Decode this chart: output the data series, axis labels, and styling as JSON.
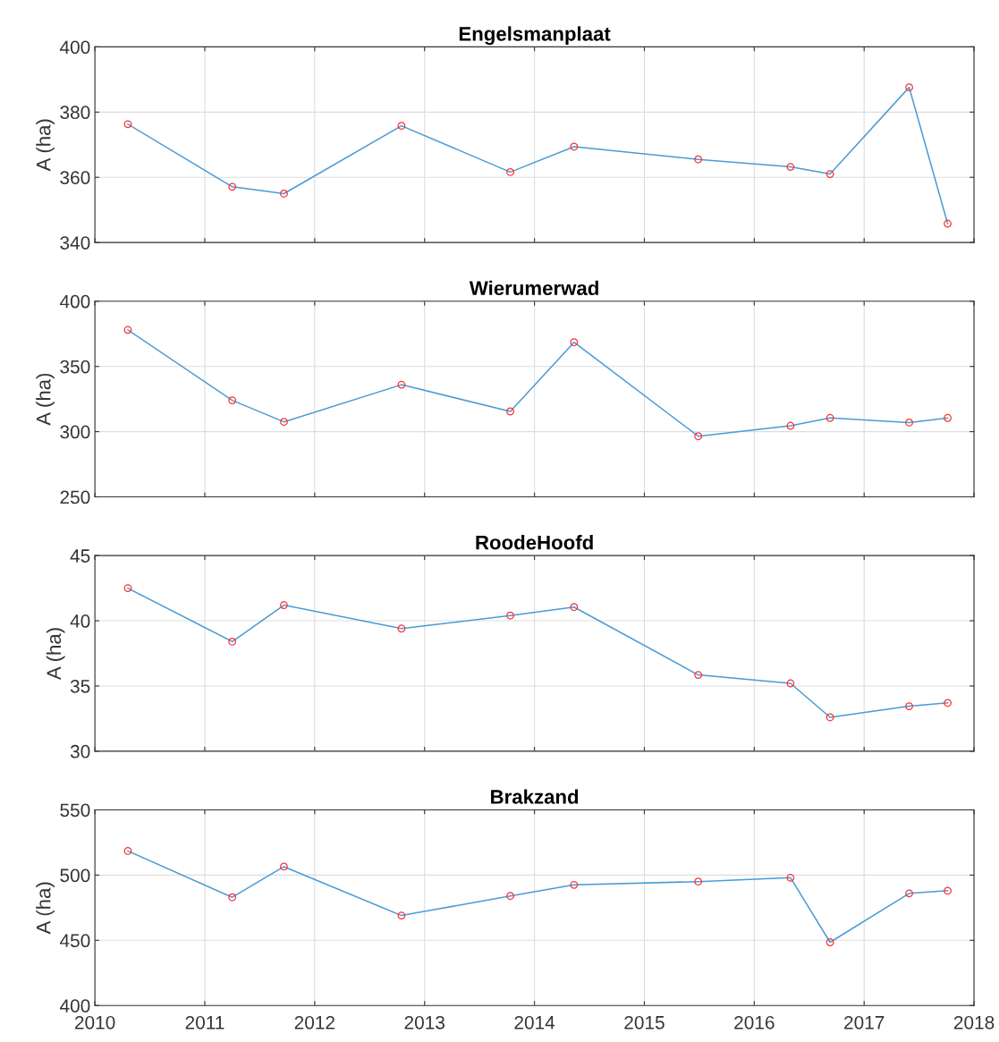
{
  "chart_data": [
    {
      "type": "line",
      "title": "Engelsmanplaat",
      "ylabel": "A (ha)",
      "x": [
        2010.3,
        2011.25,
        2011.72,
        2012.79,
        2013.78,
        2014.36,
        2015.49,
        2016.33,
        2016.69,
        2017.41,
        2017.76
      ],
      "xlim": [
        2010,
        2018
      ],
      "xticks": [
        2010,
        2011,
        2012,
        2013,
        2014,
        2015,
        2016,
        2017,
        2018
      ],
      "ylim": [
        340,
        400
      ],
      "yticks": [
        340,
        360,
        380,
        400
      ],
      "grid": true,
      "tick_labels": "y",
      "series": [
        {
          "color": "#4a9bd6",
          "marker": "none",
          "values": [
            376.3,
            357.1,
            355,
            375.8,
            361.6,
            369.4,
            365.5,
            363.2,
            361,
            387.6,
            345.8
          ]
        },
        {
          "type": "scatter",
          "color": "#ff3333",
          "marker": "circle",
          "values": [
            376.3,
            357.1,
            355,
            375.8,
            361.6,
            369.4,
            365.5,
            363.2,
            361,
            387.6,
            345.8
          ]
        }
      ]
    },
    {
      "type": "line",
      "title": "Wierumerwad",
      "ylabel": "A (ha)",
      "x": [
        2010.3,
        2011.25,
        2011.72,
        2012.79,
        2013.78,
        2014.36,
        2015.49,
        2016.33,
        2016.69,
        2017.41,
        2017.76
      ],
      "xlim": [
        2010,
        2018
      ],
      "xticks": [
        2010,
        2011,
        2012,
        2013,
        2014,
        2015,
        2016,
        2017,
        2018
      ],
      "ylim": [
        250,
        400
      ],
      "yticks": [
        250,
        300,
        350,
        400
      ],
      "grid": true,
      "tick_labels": "y",
      "series": [
        {
          "color": "#4a9bd6",
          "marker": "none",
          "values": [
            378,
            324,
            307.5,
            336,
            315.5,
            368.5,
            296.5,
            304.5,
            310.5,
            307,
            310.5
          ]
        },
        {
          "type": "scatter",
          "color": "#ff3333",
          "marker": "circle",
          "values": [
            378,
            324,
            307.5,
            336,
            315.5,
            368.5,
            296.5,
            304.5,
            310.5,
            307,
            310.5
          ]
        }
      ]
    },
    {
      "type": "line",
      "title": "RoodeHoofd",
      "ylabel": "A (ha)",
      "x": [
        2010.3,
        2011.25,
        2011.72,
        2012.79,
        2013.78,
        2014.36,
        2015.49,
        2016.33,
        2016.69,
        2017.41,
        2017.76
      ],
      "xlim": [
        2010,
        2018
      ],
      "xticks": [
        2010,
        2011,
        2012,
        2013,
        2014,
        2015,
        2016,
        2017,
        2018
      ],
      "ylim": [
        30,
        45
      ],
      "yticks": [
        30,
        35,
        40,
        45
      ],
      "grid": true,
      "tick_labels": "y",
      "series": [
        {
          "color": "#4a9bd6",
          "marker": "none",
          "values": [
            42.5,
            38.4,
            41.2,
            39.4,
            40.4,
            41.05,
            35.85,
            35.2,
            32.6,
            33.45,
            33.7
          ]
        },
        {
          "type": "scatter",
          "color": "#ff3333",
          "marker": "circle",
          "values": [
            42.5,
            38.4,
            41.2,
            39.4,
            40.4,
            41.05,
            35.85,
            35.2,
            32.6,
            33.45,
            33.7
          ]
        }
      ]
    },
    {
      "type": "line",
      "title": "Brakzand",
      "ylabel": "A (ha)",
      "x": [
        2010.3,
        2011.25,
        2011.72,
        2012.79,
        2013.78,
        2014.36,
        2015.49,
        2016.33,
        2016.69,
        2017.41,
        2017.76
      ],
      "xlim": [
        2010,
        2018
      ],
      "xticks": [
        2010,
        2011,
        2012,
        2013,
        2014,
        2015,
        2016,
        2017,
        2018
      ],
      "ylim": [
        400,
        550
      ],
      "yticks": [
        400,
        450,
        500,
        550
      ],
      "grid": true,
      "series": [
        {
          "color": "#4a9bd6",
          "marker": "none",
          "values": [
            518.5,
            483,
            506.5,
            469,
            484,
            492.5,
            495,
            498,
            448.5,
            486,
            488
          ]
        },
        {
          "type": "scatter",
          "color": "#ff3333",
          "marker": "circle",
          "values": [
            518.5,
            483,
            506.5,
            469,
            484,
            492.5,
            495,
            498,
            448.5,
            486,
            488
          ]
        }
      ]
    }
  ]
}
